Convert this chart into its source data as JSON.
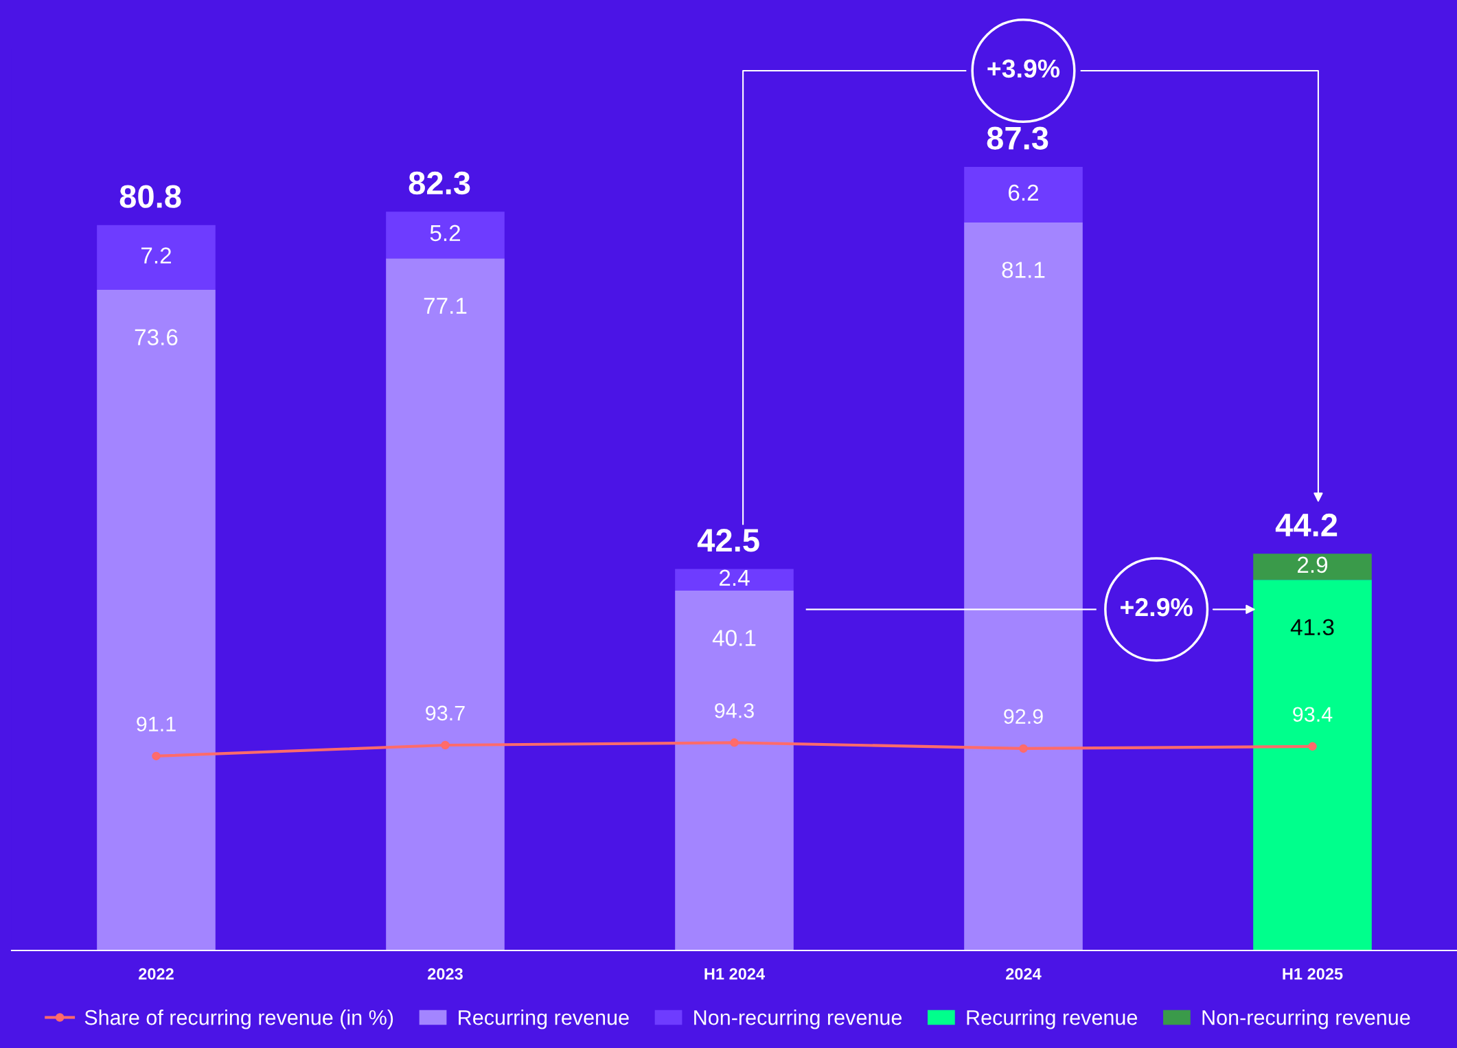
{
  "chart_data": {
    "type": "bar",
    "stacked": true,
    "data_labels": true,
    "legend": "bottom",
    "categories": [
      "2022",
      "2023",
      "H1 2024",
      "2024",
      "H1 2025"
    ],
    "tick_labels": "x",
    "grid": false,
    "series": [
      {
        "name": "Recurring revenue",
        "color": "#a385ff",
        "values": [
          73.6,
          77.1,
          40.1,
          81.1,
          null
        ]
      },
      {
        "name": "Non-recurring revenue",
        "color": "#6e3cff",
        "values": [
          7.2,
          5.2,
          2.4,
          6.2,
          null
        ]
      },
      {
        "name": "Recurring revenue",
        "color": "#00ff8c",
        "values": [
          null,
          null,
          null,
          null,
          41.3
        ]
      },
      {
        "name": "Non-recurring revenue",
        "color": "#3a9a4a",
        "values": [
          null,
          null,
          null,
          null,
          2.9
        ]
      },
      {
        "name": "Share of recurring revenue (in %)",
        "type": "line",
        "axis": "y2",
        "color": "#ff6b6b",
        "marker": "circle",
        "values": [
          91.1,
          93.7,
          94.3,
          92.9,
          93.4
        ]
      }
    ],
    "totals": [
      "80.8",
      "82.3",
      "42.5",
      "87.3",
      "44.2"
    ],
    "annotations": [
      "+3.9%",
      "+2.9%"
    ]
  }
}
